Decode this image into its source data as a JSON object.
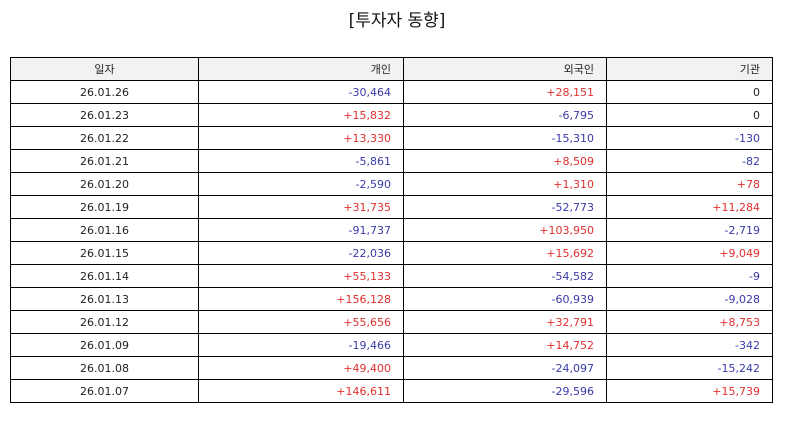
{
  "title": "[투자자 동향]",
  "colors": {
    "positive": "#e03030",
    "negative": "#3a3aa8",
    "neutral": "#222222",
    "header_bg": "#f2f2f2",
    "border": "#000000"
  },
  "table": {
    "headers": [
      "일자",
      "개인",
      "외국인",
      "기관"
    ],
    "rows": [
      [
        "26.01.26",
        "-30,464",
        "+28,151",
        "0"
      ],
      [
        "26.01.23",
        "+15,832",
        "-6,795",
        "0"
      ],
      [
        "26.01.22",
        "+13,330",
        "-15,310",
        "-130"
      ],
      [
        "26.01.21",
        "-5,861",
        "+8,509",
        "-82"
      ],
      [
        "26.01.20",
        "-2,590",
        "+1,310",
        "+78"
      ],
      [
        "26.01.19",
        "+31,735",
        "-52,773",
        "+11,284"
      ],
      [
        "26.01.16",
        "-91,737",
        "+103,950",
        "-2,719"
      ],
      [
        "26.01.15",
        "-22,036",
        "+15,692",
        "+9,049"
      ],
      [
        "26.01.14",
        "+55,133",
        "-54,582",
        "-9"
      ],
      [
        "26.01.13",
        "+156,128",
        "-60,939",
        "-9,028"
      ],
      [
        "26.01.12",
        "+55,656",
        "+32,791",
        "+8,753"
      ],
      [
        "26.01.09",
        "-19,466",
        "+14,752",
        "-342"
      ],
      [
        "26.01.08",
        "+49,400",
        "-24,097",
        "-15,242"
      ],
      [
        "26.01.07",
        "+146,611",
        "-29,596",
        "+15,739"
      ]
    ]
  }
}
